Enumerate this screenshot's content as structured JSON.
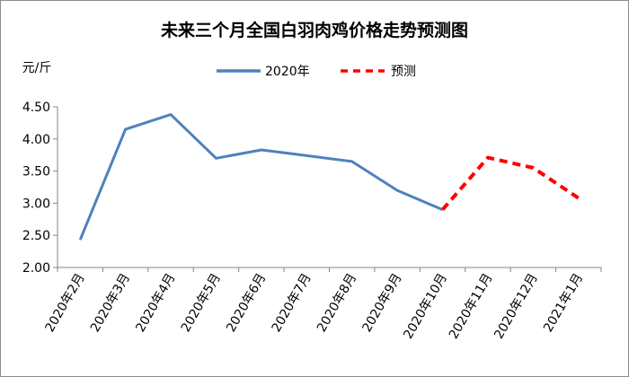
{
  "chart_data": {
    "type": "line",
    "title": "未来三个月全国白羽肉鸡价格走势预测图",
    "unit_label": "元/斤",
    "categories": [
      "2020年2月",
      "2020年3月",
      "2020年4月",
      "2020年5月",
      "2020年6月",
      "2020年7月",
      "2020年8月",
      "2020年9月",
      "2020年10月",
      "2020年11月",
      "2020年12月",
      "2021年1月"
    ],
    "ylim": [
      2.0,
      4.5
    ],
    "yticks": [
      "2.00",
      "2.50",
      "3.00",
      "3.50",
      "4.00",
      "4.50"
    ],
    "grid": false,
    "legend_position": "top",
    "series": [
      {
        "name": "2020年",
        "color": "#4f81bd",
        "style": "solid",
        "values": [
          2.43,
          4.15,
          4.38,
          3.7,
          3.83,
          3.74,
          3.65,
          3.2,
          2.9,
          null,
          null,
          null
        ]
      },
      {
        "name": "预测",
        "color": "#ff0000",
        "style": "dashed",
        "values": [
          null,
          null,
          null,
          null,
          null,
          null,
          null,
          null,
          2.9,
          3.71,
          3.55,
          3.08
        ]
      }
    ]
  }
}
